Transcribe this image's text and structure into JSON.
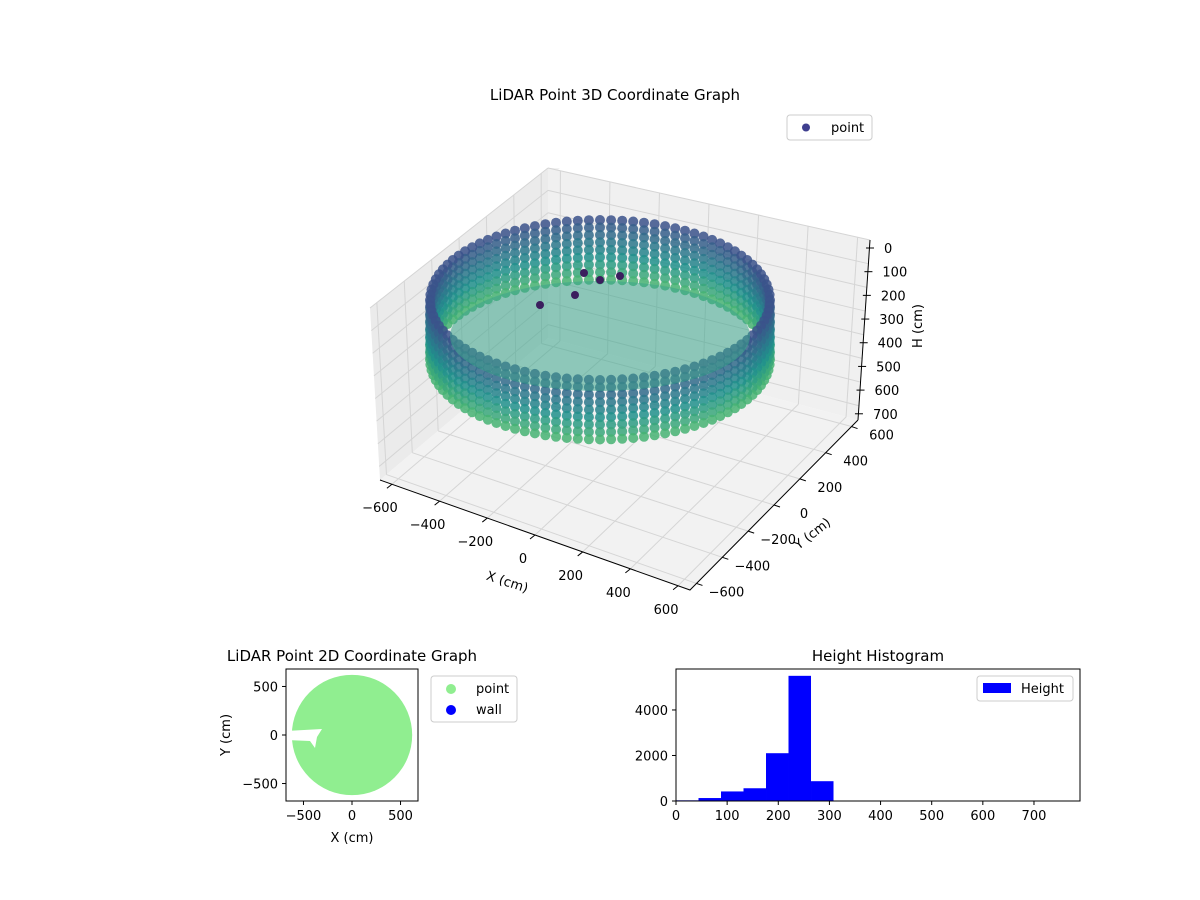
{
  "chart_data": [
    {
      "type": "scatter",
      "title": "LiDAR Point 3D Coordinate Graph",
      "xlabel": "X (cm)",
      "ylabel": "Y (cm)",
      "zlabel": "H (cm)",
      "x_ticks": [
        "−600",
        "−400",
        "−200",
        "0",
        "200",
        "400",
        "600"
      ],
      "y_ticks": [
        "−600",
        "−400",
        "−200",
        "0",
        "200",
        "400",
        "600"
      ],
      "z_ticks": [
        "0",
        "100",
        "200",
        "300",
        "400",
        "500",
        "600",
        "700"
      ],
      "xlim": [
        -650,
        650
      ],
      "ylim": [
        -650,
        650
      ],
      "zlim": [
        0,
        760
      ],
      "z_inverted": true,
      "grid": true,
      "legend": {
        "position": "top-right",
        "entries": [
          {
            "label": "point",
            "color": "#3f3f8f"
          }
        ]
      },
      "colormap": "viridis",
      "shape": {
        "ring_radius_cm": 600,
        "wall_height_top_cm": 180,
        "wall_height_bottom_cm": 280,
        "floor_height_cm": 240
      }
    },
    {
      "type": "scatter",
      "title": "LiDAR Point 2D Coordinate Graph",
      "xlabel": "X (cm)",
      "ylabel": "Y (cm)",
      "x_ticks": [
        "−500",
        "0",
        "500"
      ],
      "y_ticks": [
        "500",
        "0",
        "−500"
      ],
      "xlim": [
        -680,
        680
      ],
      "ylim": [
        -680,
        680
      ],
      "legend": {
        "position": "outside-right",
        "entries": [
          {
            "label": "point",
            "color": "#90ee90"
          },
          {
            "label": "wall",
            "color": "#0000ff"
          }
        ]
      },
      "disc_radius_cm": 620
    },
    {
      "type": "bar",
      "title": "Height Histogram",
      "series": [
        {
          "name": "Height",
          "color": "#0000ff"
        }
      ],
      "bins": [
        {
          "x0": 0,
          "x1": 44,
          "count": 30
        },
        {
          "x0": 44,
          "x1": 88,
          "count": 130
        },
        {
          "x0": 88,
          "x1": 132,
          "count": 420
        },
        {
          "x0": 132,
          "x1": 176,
          "count": 560
        },
        {
          "x0": 176,
          "x1": 220,
          "count": 2100
        },
        {
          "x0": 220,
          "x1": 264,
          "count": 5500
        },
        {
          "x0": 264,
          "x1": 308,
          "count": 870
        },
        {
          "x0": 308,
          "x1": 352,
          "count": 10
        },
        {
          "x0": 352,
          "x1": 396,
          "count": 5
        },
        {
          "x0": 396,
          "x1": 440,
          "count": 2
        },
        {
          "x0": 440,
          "x1": 484,
          "count": 1
        },
        {
          "x0": 484,
          "x1": 528,
          "count": 1
        },
        {
          "x0": 528,
          "x1": 572,
          "count": 1
        },
        {
          "x0": 572,
          "x1": 616,
          "count": 1
        },
        {
          "x0": 616,
          "x1": 660,
          "count": 1
        },
        {
          "x0": 660,
          "x1": 704,
          "count": 1
        },
        {
          "x0": 704,
          "x1": 748,
          "count": 1
        },
        {
          "x0": 748,
          "x1": 792,
          "count": 1
        }
      ],
      "x_ticks": [
        0,
        100,
        200,
        300,
        400,
        500,
        600,
        700
      ],
      "y_ticks": [
        0,
        2000,
        4000
      ],
      "xlim": [
        0,
        790
      ],
      "ylim": [
        0,
        5800
      ],
      "legend": {
        "position": "top-right"
      }
    }
  ]
}
